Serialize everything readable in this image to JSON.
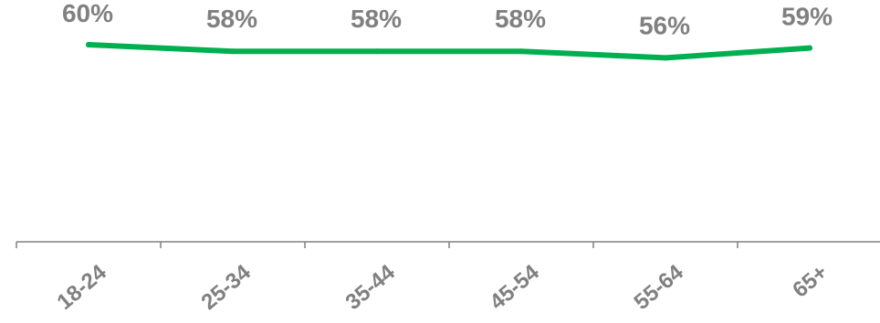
{
  "chart_data": {
    "type": "line",
    "categories": [
      "18-24",
      "25-34",
      "35-44",
      "45-54",
      "55-64",
      "65+"
    ],
    "series": [
      {
        "values": [
          60,
          58,
          58,
          58,
          56,
          59
        ]
      }
    ],
    "data_labels": [
      "60%",
      "58%",
      "58%",
      "58%",
      "56%",
      "59%"
    ],
    "title": "",
    "xlabel": "",
    "ylabel": "",
    "ylim": [
      0,
      70
    ],
    "grid": false,
    "legend": "none",
    "colors": {
      "line": "#00b050",
      "labels": "#808080",
      "axis": "#808080"
    }
  }
}
